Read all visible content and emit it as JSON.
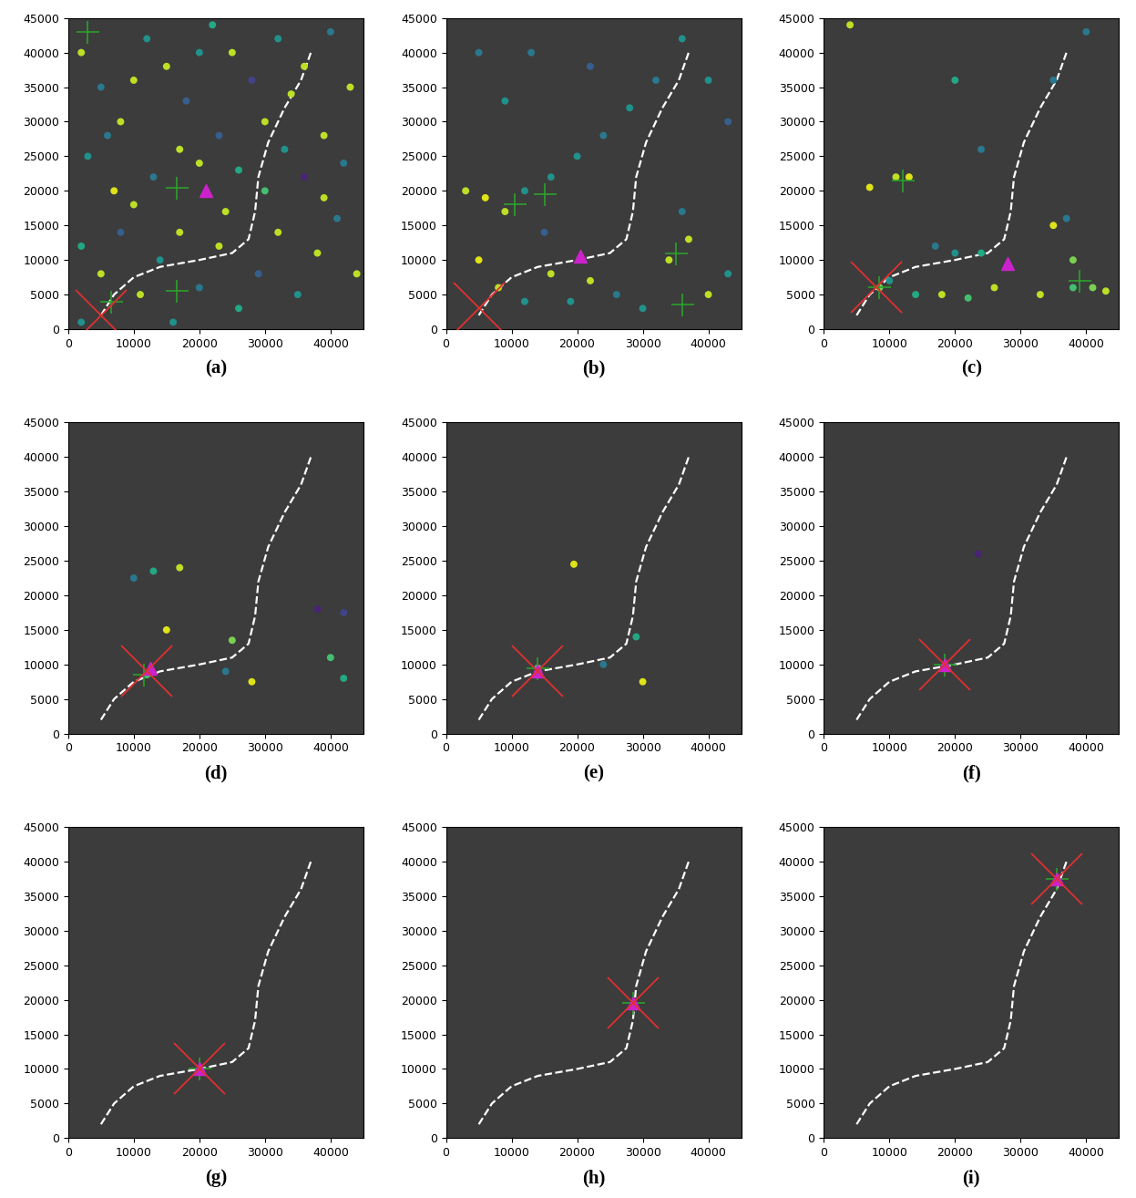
{
  "chart_data": [
    {
      "type": "scatter",
      "title": "(a)",
      "xlim": [
        0,
        45000
      ],
      "ylim": [
        0,
        45000
      ],
      "xticks": [
        0,
        10000,
        20000,
        30000,
        40000
      ],
      "yticks": [
        0,
        5000,
        10000,
        15000,
        20000,
        25000,
        30000,
        35000,
        40000,
        45000
      ],
      "path": {
        "x": [
          5000,
          7000,
          10000,
          14000,
          20000,
          25000,
          27500,
          28500,
          29000,
          30500,
          33000,
          35500,
          37000
        ],
        "y": [
          2000,
          5000,
          7500,
          9000,
          10000,
          11000,
          13000,
          17000,
          22000,
          27000,
          32000,
          36000,
          40000
        ]
      },
      "particles": [
        [
          2000,
          40000,
          0.9
        ],
        [
          5000,
          35000,
          0.4
        ],
        [
          8000,
          30000,
          0.9
        ],
        [
          12000,
          42000,
          0.5
        ],
        [
          15000,
          38000,
          0.9
        ],
        [
          18000,
          33000,
          0.3
        ],
        [
          22000,
          44000,
          0.6
        ],
        [
          25000,
          40000,
          0.9
        ],
        [
          28000,
          36000,
          0.2
        ],
        [
          32000,
          42000,
          0.5
        ],
        [
          36000,
          38000,
          0.9
        ],
        [
          40000,
          43000,
          0.4
        ],
        [
          43000,
          35000,
          0.9
        ],
        [
          3000,
          25000,
          0.5
        ],
        [
          7000,
          20000,
          0.95
        ],
        [
          10000,
          18000,
          0.9
        ],
        [
          13000,
          22000,
          0.4
        ],
        [
          17000,
          26000,
          0.9
        ],
        [
          20000,
          24000,
          0.9
        ],
        [
          23000,
          28000,
          0.3
        ],
        [
          26000,
          23000,
          0.6
        ],
        [
          30000,
          30000,
          0.9
        ],
        [
          33000,
          26000,
          0.5
        ],
        [
          36000,
          22000,
          0.1
        ],
        [
          39000,
          28000,
          0.9
        ],
        [
          42000,
          24000,
          0.4
        ],
        [
          2000,
          12000,
          0.6
        ],
        [
          5000,
          8000,
          0.9
        ],
        [
          8000,
          14000,
          0.3
        ],
        [
          11000,
          5000,
          0.9
        ],
        [
          14000,
          10000,
          0.5
        ],
        [
          17000,
          14000,
          0.9
        ],
        [
          20000,
          6000,
          0.4
        ],
        [
          23000,
          12000,
          0.9
        ],
        [
          26000,
          3000,
          0.6
        ],
        [
          29000,
          8000,
          0.3
        ],
        [
          32000,
          14000,
          0.9
        ],
        [
          35000,
          5000,
          0.5
        ],
        [
          38000,
          11000,
          0.9
        ],
        [
          41000,
          16000,
          0.4
        ],
        [
          44000,
          8000,
          0.9
        ],
        [
          2000,
          1000,
          0.5
        ],
        [
          16000,
          1000,
          0.5
        ],
        [
          30000,
          20000,
          0.7
        ],
        [
          24000,
          17000,
          0.9
        ],
        [
          10000,
          36000,
          0.9
        ],
        [
          20000,
          40000,
          0.5
        ],
        [
          34000,
          34000,
          0.9
        ],
        [
          6000,
          28000,
          0.4
        ],
        [
          39000,
          19000,
          0.9
        ]
      ],
      "clusters": {
        "x": [
          16500,
          16500,
          3000,
          6500
        ],
        "y": [
          20500,
          5500,
          43000,
          4000
        ]
      },
      "true_position": [
        21000,
        20000
      ],
      "estimate": [
        5000,
        2000
      ]
    },
    {
      "type": "scatter",
      "title": "(b)",
      "xlim": [
        0,
        45000
      ],
      "ylim": [
        0,
        45000
      ],
      "xticks": [
        0,
        10000,
        20000,
        30000,
        40000
      ],
      "yticks": [
        0,
        5000,
        10000,
        15000,
        20000,
        25000,
        30000,
        35000,
        40000,
        45000
      ],
      "path": {
        "x": [
          5000,
          7000,
          10000,
          14000,
          20000,
          25000,
          27500,
          28500,
          29000,
          30500,
          33000,
          35500,
          37000
        ],
        "y": [
          2000,
          5000,
          7500,
          9000,
          10000,
          11000,
          13000,
          17000,
          22000,
          27000,
          32000,
          36000,
          40000
        ]
      },
      "particles": [
        [
          3000,
          20000,
          0.9
        ],
        [
          6000,
          19000,
          0.95
        ],
        [
          9000,
          17000,
          0.9
        ],
        [
          12000,
          20000,
          0.5
        ],
        [
          16000,
          22000,
          0.5
        ],
        [
          20000,
          25000,
          0.5
        ],
        [
          24000,
          28000,
          0.4
        ],
        [
          28000,
          32000,
          0.5
        ],
        [
          32000,
          36000,
          0.4
        ],
        [
          36000,
          42000,
          0.5
        ],
        [
          5000,
          40000,
          0.4
        ],
        [
          9000,
          33000,
          0.5
        ],
        [
          13000,
          40000,
          0.4
        ],
        [
          22000,
          38000,
          0.3
        ],
        [
          40000,
          36000,
          0.5
        ],
        [
          43000,
          30000,
          0.3
        ],
        [
          5000,
          10000,
          0.95
        ],
        [
          8000,
          6000,
          0.9
        ],
        [
          12000,
          4000,
          0.5
        ],
        [
          16000,
          8000,
          0.9
        ],
        [
          19000,
          4000,
          0.5
        ],
        [
          22000,
          7000,
          0.9
        ],
        [
          26000,
          5000,
          0.4
        ],
        [
          30000,
          3000,
          0.5
        ],
        [
          34000,
          10000,
          0.9
        ],
        [
          37000,
          13000,
          0.9
        ],
        [
          40000,
          5000,
          0.9
        ],
        [
          43000,
          8000,
          0.5
        ],
        [
          36000,
          17000,
          0.4
        ],
        [
          15000,
          14000,
          0.3
        ]
      ],
      "clusters": {
        "x": [
          10500,
          15000,
          35000,
          36000
        ],
        "y": [
          18000,
          19500,
          11000,
          3500
        ]
      },
      "true_position": [
        20500,
        10500
      ],
      "estimate": [
        5000,
        3000
      ]
    },
    {
      "type": "scatter",
      "title": "(c)",
      "xlim": [
        0,
        45000
      ],
      "ylim": [
        0,
        45000
      ],
      "xticks": [
        0,
        10000,
        20000,
        30000,
        40000
      ],
      "yticks": [
        0,
        5000,
        10000,
        15000,
        20000,
        25000,
        30000,
        35000,
        40000,
        45000
      ],
      "path": {
        "x": [
          5000,
          7000,
          10000,
          14000,
          20000,
          25000,
          27500,
          28500,
          29000,
          30500,
          33000,
          35500,
          37000
        ],
        "y": [
          2000,
          5000,
          7500,
          9000,
          10000,
          11000,
          13000,
          17000,
          22000,
          27000,
          32000,
          36000,
          40000
        ]
      },
      "particles": [
        [
          7000,
          20500,
          0.95
        ],
        [
          11000,
          22000,
          0.9
        ],
        [
          13000,
          22000,
          0.95
        ],
        [
          4000,
          44000,
          0.9
        ],
        [
          40000,
          43000,
          0.4
        ],
        [
          35000,
          36000,
          0.4
        ],
        [
          24000,
          26000,
          0.4
        ],
        [
          20000,
          36000,
          0.6
        ],
        [
          8500,
          6000,
          0.8
        ],
        [
          10000,
          7000,
          0.5
        ],
        [
          17000,
          12000,
          0.4
        ],
        [
          20000,
          11000,
          0.5
        ],
        [
          24000,
          11000,
          0.6
        ],
        [
          14000,
          5000,
          0.6
        ],
        [
          18000,
          5000,
          0.9
        ],
        [
          22000,
          4500,
          0.7
        ],
        [
          26000,
          6000,
          0.9
        ],
        [
          35000,
          15000,
          0.95
        ],
        [
          37000,
          16000,
          0.4
        ],
        [
          38000,
          6000,
          0.7
        ],
        [
          41000,
          6000,
          0.8
        ],
        [
          43000,
          5500,
          0.9
        ],
        [
          33000,
          5000,
          0.9
        ],
        [
          38000,
          10000,
          0.8
        ]
      ],
      "clusters": {
        "x": [
          8500,
          12000,
          39000
        ],
        "y": [
          6000,
          21500,
          7000
        ]
      },
      "true_position": [
        28000,
        9500
      ],
      "estimate": [
        8000,
        6000
      ]
    },
    {
      "type": "scatter",
      "title": "(d)",
      "xlim": [
        0,
        45000
      ],
      "ylim": [
        0,
        45000
      ],
      "xticks": [
        0,
        10000,
        20000,
        30000,
        40000
      ],
      "yticks": [
        0,
        5000,
        10000,
        15000,
        20000,
        25000,
        30000,
        35000,
        40000,
        45000
      ],
      "path": {
        "x": [
          5000,
          7000,
          10000,
          14000,
          20000,
          25000,
          27500,
          28500,
          29000,
          30500,
          33000,
          35500,
          37000
        ],
        "y": [
          2000,
          5000,
          7500,
          9000,
          10000,
          11000,
          13000,
          17000,
          22000,
          27000,
          32000,
          36000,
          40000
        ]
      },
      "particles": [
        [
          10000,
          22500,
          0.4
        ],
        [
          13000,
          23500,
          0.6
        ],
        [
          17000,
          24000,
          0.9
        ],
        [
          12000,
          8500,
          0.7
        ],
        [
          15000,
          15000,
          0.95
        ],
        [
          25000,
          13500,
          0.8
        ],
        [
          24000,
          9000,
          0.4
        ],
        [
          28000,
          7500,
          0.95
        ],
        [
          40000,
          11000,
          0.7
        ],
        [
          42000,
          8000,
          0.6
        ],
        [
          38000,
          18000,
          0.1
        ],
        [
          42000,
          17500,
          0.2
        ]
      ],
      "clusters": {
        "x": [
          11500
        ],
        "y": [
          8500
        ]
      },
      "true_position": [
        12500,
        9500
      ],
      "estimate": [
        12000,
        9000
      ]
    },
    {
      "type": "scatter",
      "title": "(e)",
      "xlim": [
        0,
        45000
      ],
      "ylim": [
        0,
        45000
      ],
      "xticks": [
        0,
        10000,
        20000,
        30000,
        40000
      ],
      "yticks": [
        0,
        5000,
        10000,
        15000,
        20000,
        25000,
        30000,
        35000,
        40000,
        45000
      ],
      "path": {
        "x": [
          5000,
          7000,
          10000,
          14000,
          20000,
          25000,
          27500,
          28500,
          29000,
          30500,
          33000,
          35500,
          37000
        ],
        "y": [
          2000,
          5000,
          7500,
          9000,
          10000,
          11000,
          13000,
          17000,
          22000,
          27000,
          32000,
          36000,
          40000
        ]
      },
      "particles": [
        [
          19500,
          24500,
          0.95
        ],
        [
          14000,
          9500,
          0.7
        ],
        [
          29000,
          14000,
          0.6
        ],
        [
          30000,
          7500,
          0.95
        ],
        [
          24000,
          10000,
          0.4
        ]
      ],
      "clusters": {
        "x": [
          14000
        ],
        "y": [
          9500
        ]
      },
      "true_position": [
        14000,
        9000
      ],
      "estimate": [
        14000,
        9000
      ]
    },
    {
      "type": "scatter",
      "title": "(f)",
      "xlim": [
        0,
        45000
      ],
      "ylim": [
        0,
        45000
      ],
      "xticks": [
        0,
        10000,
        20000,
        30000,
        40000
      ],
      "yticks": [
        0,
        5000,
        10000,
        15000,
        20000,
        25000,
        30000,
        35000,
        40000,
        45000
      ],
      "path": {
        "x": [
          5000,
          7000,
          10000,
          14000,
          20000,
          25000,
          27500,
          28500,
          29000,
          30500,
          33000,
          35500,
          37000
        ],
        "y": [
          2000,
          5000,
          7500,
          9000,
          10000,
          11000,
          13000,
          17000,
          22000,
          27000,
          32000,
          36000,
          40000
        ]
      },
      "particles": [
        [
          23500,
          26000,
          0.1
        ]
      ],
      "clusters": {
        "x": [
          18500
        ],
        "y": [
          10000
        ]
      },
      "true_position": [
        18500,
        10000
      ],
      "estimate": [
        18500,
        10000
      ]
    },
    {
      "type": "scatter",
      "title": "(g)",
      "xlim": [
        0,
        45000
      ],
      "ylim": [
        0,
        45000
      ],
      "xticks": [
        0,
        10000,
        20000,
        30000,
        40000
      ],
      "yticks": [
        0,
        5000,
        10000,
        15000,
        20000,
        25000,
        30000,
        35000,
        40000,
        45000
      ],
      "path": {
        "x": [
          5000,
          7000,
          10000,
          14000,
          20000,
          25000,
          27500,
          28500,
          29000,
          30500,
          33000,
          35500,
          37000
        ],
        "y": [
          2000,
          5000,
          7500,
          9000,
          10000,
          11000,
          13000,
          17000,
          22000,
          27000,
          32000,
          36000,
          40000
        ]
      },
      "particles": [],
      "clusters": {
        "x": [
          20000
        ],
        "y": [
          10000
        ]
      },
      "true_position": [
        20000,
        10000
      ],
      "estimate": [
        20000,
        10000
      ]
    },
    {
      "type": "scatter",
      "title": "(h)",
      "xlim": [
        0,
        45000
      ],
      "ylim": [
        0,
        45000
      ],
      "xticks": [
        0,
        10000,
        20000,
        30000,
        40000
      ],
      "yticks": [
        0,
        5000,
        10000,
        15000,
        20000,
        25000,
        30000,
        35000,
        40000,
        45000
      ],
      "path": {
        "x": [
          5000,
          7000,
          10000,
          14000,
          20000,
          25000,
          27500,
          28500,
          29000,
          30500,
          33000,
          35500,
          37000
        ],
        "y": [
          2000,
          5000,
          7500,
          9000,
          10000,
          11000,
          13000,
          17000,
          22000,
          27000,
          32000,
          36000,
          40000
        ]
      },
      "particles": [],
      "clusters": {
        "x": [
          28500
        ],
        "y": [
          19500
        ]
      },
      "true_position": [
        28500,
        19500
      ],
      "estimate": [
        28500,
        19500
      ]
    },
    {
      "type": "scatter",
      "title": "(i)",
      "xlim": [
        0,
        45000
      ],
      "ylim": [
        0,
        45000
      ],
      "xticks": [
        0,
        10000,
        20000,
        30000,
        40000
      ],
      "yticks": [
        0,
        5000,
        10000,
        15000,
        20000,
        25000,
        30000,
        35000,
        40000,
        45000
      ],
      "path": {
        "x": [
          5000,
          7000,
          10000,
          14000,
          20000,
          25000,
          27500,
          28500,
          29000,
          30500,
          33000,
          35500,
          37000
        ],
        "y": [
          2000,
          5000,
          7500,
          9000,
          10000,
          11000,
          13000,
          17000,
          22000,
          27000,
          32000,
          36000,
          40000
        ]
      },
      "particles": [],
      "clusters": {
        "x": [
          35500
        ],
        "y": [
          37500
        ]
      },
      "true_position": [
        35500,
        37500
      ],
      "estimate": [
        35500,
        37500
      ]
    }
  ]
}
